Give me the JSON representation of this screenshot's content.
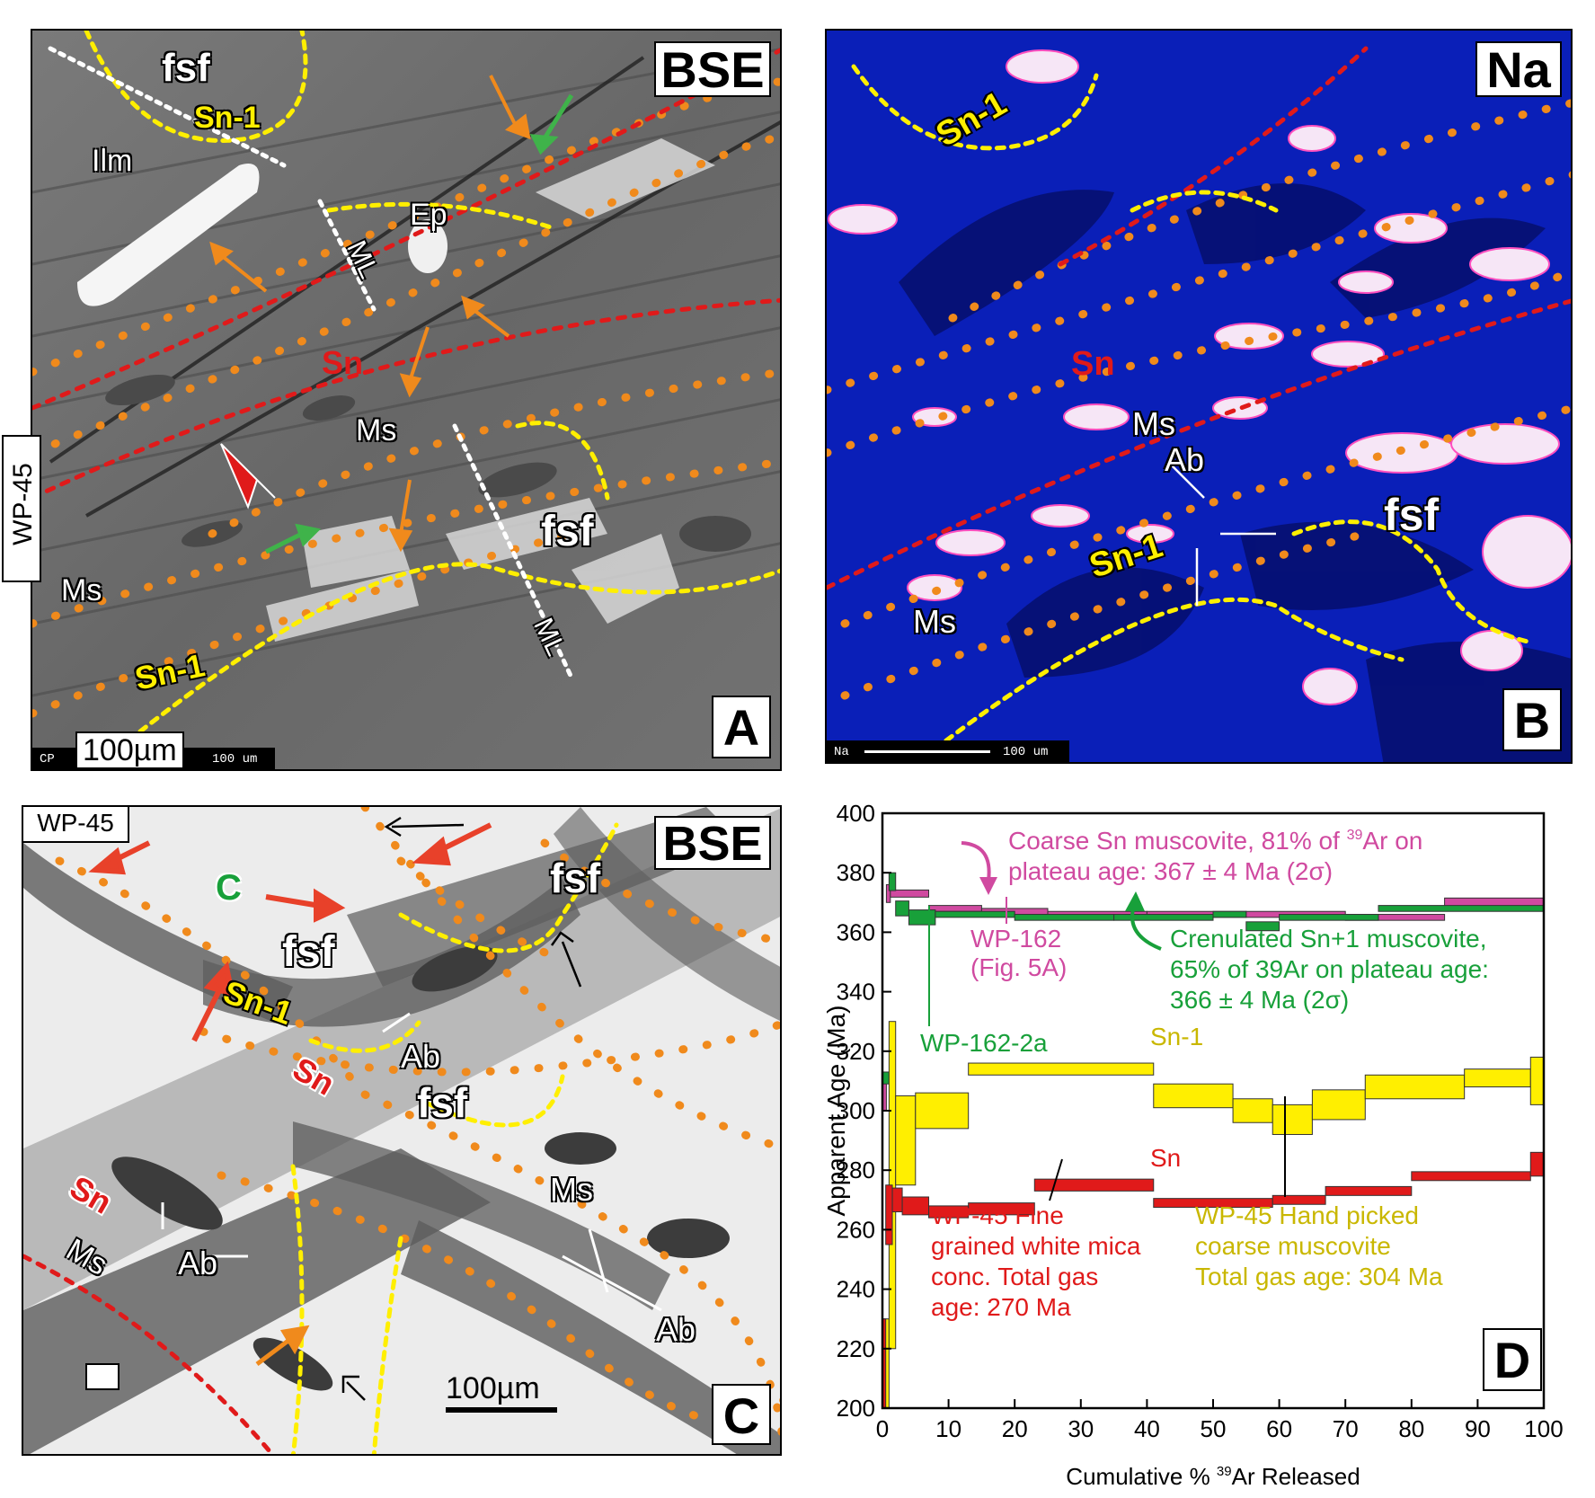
{
  "panel_a": {
    "tag": "BSE",
    "letter": "A",
    "sample_tag": "WP-45",
    "scale_label": "100µm",
    "footer_left": "CP",
    "footer_scale": "100 um",
    "labels": {
      "fsf_top": "fsf",
      "sn1_top": "Sn-1",
      "ilm": "Ilm",
      "ep": "Ep",
      "ml_top": "ML",
      "sn": "Sn",
      "ms_center": "Ms",
      "fsf_right": "fsf",
      "ms_left": "Ms",
      "sn1_bottom": "Sn-1",
      "ml_bottom": "ML"
    }
  },
  "panel_b": {
    "tag": "Na",
    "letter": "B",
    "footer_left": "Na",
    "footer_scale": "100 um",
    "labels": {
      "sn1_top": "Sn-1",
      "sn": "Sn",
      "ms_center": "Ms",
      "ab": "Ab",
      "fsf": "fsf",
      "sn1_bottom": "Sn-1",
      "ms_bottom": "Ms"
    }
  },
  "panel_c": {
    "tag": "BSE",
    "letter": "C",
    "sample_tag": "WP-45",
    "scale_label": "100µm",
    "labels": {
      "c": "C",
      "fsf_top_right": "fsf",
      "fsf_center": "fsf",
      "sn1": "Sn-1",
      "ab_center": "Ab",
      "sn_center": "Sn",
      "fsf_lower": "fsf",
      "ms_right": "Ms",
      "sn_left": "Sn",
      "ms_left": "Ms",
      "ab_left": "Ab",
      "ab_right": "Ab"
    }
  },
  "panel_d": {
    "letter": "D",
    "annotations": {
      "coarse_l1_pre": "Coarse Sn muscovite, 81% of ",
      "coarse_sup": "39",
      "coarse_l1_post": "Ar on",
      "coarse_l2": "plateau age: 367 ± 4 Ma (2σ)",
      "wp162_l1": "WP-162",
      "wp162_l2": "(Fig. 5A)",
      "cren_l1": "Crenulated Sn+1 muscovite,",
      "cren_l2": "65% of 39Ar on plateau age:",
      "cren_l3": "366 ± 4 Ma (2σ)",
      "wp1622a": "WP-162-2a",
      "sn1": "Sn-1",
      "sn": "Sn",
      "fine_l1": "WP-45 Fine",
      "fine_l2": "grained white mica",
      "fine_l3": "conc. Total gas",
      "fine_l4": "age: 270 Ma",
      "hand_l1": "WP-45 Hand picked",
      "hand_l2": "coarse muscovite",
      "hand_l3": "Total gas age: 304 Ma"
    }
  },
  "colors": {
    "sn_red": "#e01a1a",
    "sn1_yellow": "#ffef00",
    "orange_dots": "#f08a1c",
    "wp162_magenta": "#d04aa0",
    "wp1622a_green": "#18a03a",
    "na_blue": "#0a1fb8"
  },
  "chart_data": {
    "type": "step-spectrum",
    "xlabel_pre": "Cumulative % ",
    "xlabel_sup": "39",
    "xlabel_post": "Ar Released",
    "ylabel": "Apparent Age (Ma)",
    "xlim": [
      0,
      100
    ],
    "ylim": [
      200,
      400
    ],
    "xticks": [
      0,
      10,
      20,
      30,
      40,
      50,
      60,
      70,
      80,
      90,
      100
    ],
    "yticks": [
      200,
      220,
      240,
      260,
      280,
      300,
      320,
      340,
      360,
      380,
      400
    ],
    "series": [
      {
        "name": "WP-162",
        "color": "#d04aa0",
        "steps": [
          {
            "x0": 0,
            "x1": 0.6,
            "age": 306,
            "err": 6
          },
          {
            "x0": 0.6,
            "x1": 1.2,
            "age": 373,
            "err": 3
          },
          {
            "x0": 1.2,
            "x1": 7,
            "age": 373,
            "err": 1.2
          },
          {
            "x0": 7,
            "x1": 15,
            "age": 368,
            "err": 1
          },
          {
            "x0": 15,
            "x1": 25,
            "age": 367,
            "err": 1
          },
          {
            "x0": 25,
            "x1": 40,
            "age": 366,
            "err": 1
          },
          {
            "x0": 40,
            "x1": 55,
            "age": 366,
            "err": 1
          },
          {
            "x0": 55,
            "x1": 70,
            "age": 366,
            "err": 1
          },
          {
            "x0": 70,
            "x1": 85,
            "age": 365,
            "err": 1
          },
          {
            "x0": 85,
            "x1": 100,
            "age": 370,
            "err": 1.5
          }
        ]
      },
      {
        "name": "WP-162-2a",
        "color": "#18a03a",
        "steps": [
          {
            "x0": 0,
            "x1": 1,
            "age": 311,
            "err": 2
          },
          {
            "x0": 1,
            "x1": 2,
            "age": 377,
            "err": 3
          },
          {
            "x0": 2,
            "x1": 4,
            "age": 368,
            "err": 2.5
          },
          {
            "x0": 4,
            "x1": 8,
            "age": 365,
            "err": 2.5
          },
          {
            "x0": 8,
            "x1": 20,
            "age": 366,
            "err": 1
          },
          {
            "x0": 20,
            "x1": 35,
            "age": 365,
            "err": 1
          },
          {
            "x0": 35,
            "x1": 50,
            "age": 365,
            "err": 1
          },
          {
            "x0": 50,
            "x1": 55,
            "age": 366,
            "err": 1
          },
          {
            "x0": 55,
            "x1": 60,
            "age": 362,
            "err": 1.5
          },
          {
            "x0": 60,
            "x1": 75,
            "age": 365,
            "err": 1
          },
          {
            "x0": 75,
            "x1": 100,
            "age": 368,
            "err": 1
          }
        ]
      },
      {
        "name": "Sn-1",
        "color": "#ffef00",
        "steps": [
          {
            "x0": 0,
            "x1": 1,
            "age": 215,
            "err": 15
          },
          {
            "x0": 1,
            "x1": 2,
            "age": 275,
            "err": 55
          },
          {
            "x0": 2,
            "x1": 5,
            "age": 290,
            "err": 15
          },
          {
            "x0": 5,
            "x1": 13,
            "age": 300,
            "err": 6
          },
          {
            "x0": 13,
            "x1": 41,
            "age": 314,
            "err": 2
          },
          {
            "x0": 41,
            "x1": 53,
            "age": 305,
            "err": 4
          },
          {
            "x0": 53,
            "x1": 59,
            "age": 300,
            "err": 4
          },
          {
            "x0": 59,
            "x1": 65,
            "age": 297,
            "err": 5
          },
          {
            "x0": 65,
            "x1": 73,
            "age": 302,
            "err": 5
          },
          {
            "x0": 73,
            "x1": 88,
            "age": 308,
            "err": 4
          },
          {
            "x0": 88,
            "x1": 98,
            "age": 311,
            "err": 3
          },
          {
            "x0": 98,
            "x1": 100,
            "age": 310,
            "err": 8
          }
        ]
      },
      {
        "name": "Sn",
        "color": "#e01a1a",
        "steps": [
          {
            "x0": 0,
            "x1": 0.5,
            "age": 215,
            "err": 15
          },
          {
            "x0": 0.5,
            "x1": 1.5,
            "age": 265,
            "err": 10
          },
          {
            "x0": 1.5,
            "x1": 3,
            "age": 270,
            "err": 4
          },
          {
            "x0": 3,
            "x1": 7,
            "age": 268,
            "err": 3
          },
          {
            "x0": 7,
            "x1": 13,
            "age": 266,
            "err": 2
          },
          {
            "x0": 13,
            "x1": 23,
            "age": 267,
            "err": 2
          },
          {
            "x0": 23,
            "x1": 41,
            "age": 275,
            "err": 2
          },
          {
            "x0": 41,
            "x1": 59,
            "age": 269,
            "err": 1.5
          },
          {
            "x0": 59,
            "x1": 67,
            "age": 270,
            "err": 1.5
          },
          {
            "x0": 67,
            "x1": 80,
            "age": 273,
            "err": 1.5
          },
          {
            "x0": 80,
            "x1": 98,
            "age": 278,
            "err": 1.5
          },
          {
            "x0": 98,
            "x1": 100,
            "age": 282,
            "err": 4
          }
        ]
      }
    ]
  }
}
